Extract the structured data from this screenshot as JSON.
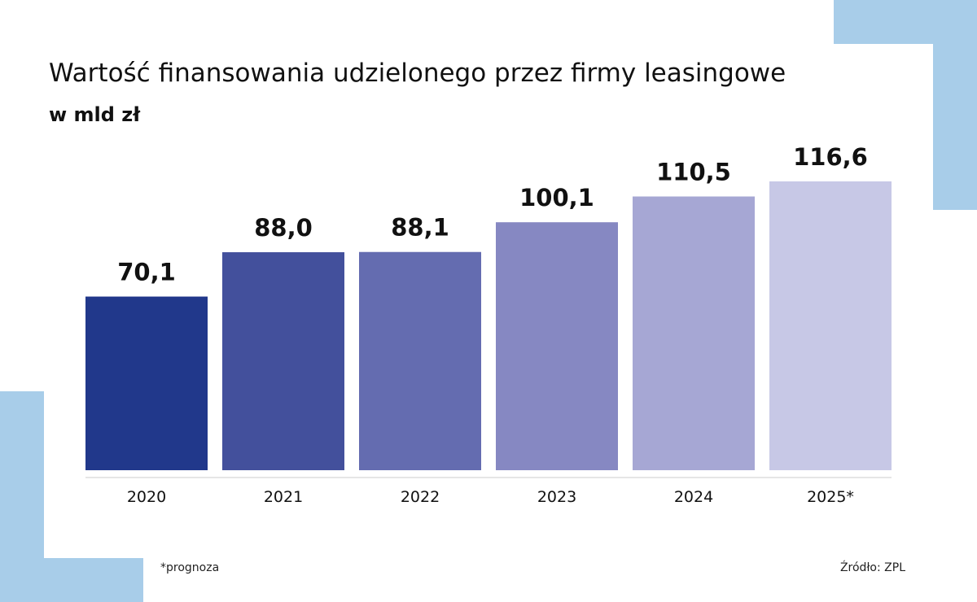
{
  "title": "Wartość finansowania udzielonego przez firmy leasingowe",
  "subtitle": "w mld zł",
  "footnote": "*prognoza",
  "source": "Źródło: ZPL",
  "colors": {
    "bars": [
      "#21388b",
      "#43509c",
      "#646cb0",
      "#8688c2",
      "#a6a7d4",
      "#c7c8e6"
    ],
    "decoration": "#a8cde9",
    "axis": "#cccccc"
  },
  "chart_data": {
    "type": "bar",
    "title": "Wartość finansowania udzielonego przez firmy leasingowe",
    "subtitle": "w mld zł",
    "categories": [
      "2020",
      "2021",
      "2022",
      "2023",
      "2024",
      "2025*"
    ],
    "values": [
      70.1,
      88.0,
      88.1,
      100.1,
      110.5,
      116.6
    ],
    "value_labels": [
      "70,1",
      "88,0",
      "88,1",
      "100,1",
      "110,5",
      "116,6"
    ],
    "xlabel": "",
    "ylabel": "",
    "grid": false,
    "legend": "none"
  }
}
